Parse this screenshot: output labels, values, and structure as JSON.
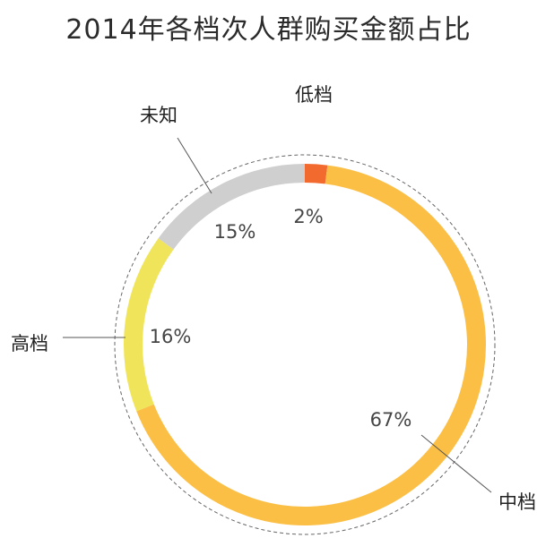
{
  "chart_data": {
    "type": "pie",
    "title": "2014年各档次人群购买金额占比",
    "categories": [
      "低档",
      "中档",
      "高档",
      "未知"
    ],
    "values": [
      2,
      67,
      16,
      15
    ],
    "value_labels": [
      "2%",
      "67%",
      "16%",
      "15%"
    ],
    "colors": [
      "#f26a2e",
      "#fbbf45",
      "#f0e55a",
      "#cfcfcf"
    ],
    "style": "donut"
  }
}
